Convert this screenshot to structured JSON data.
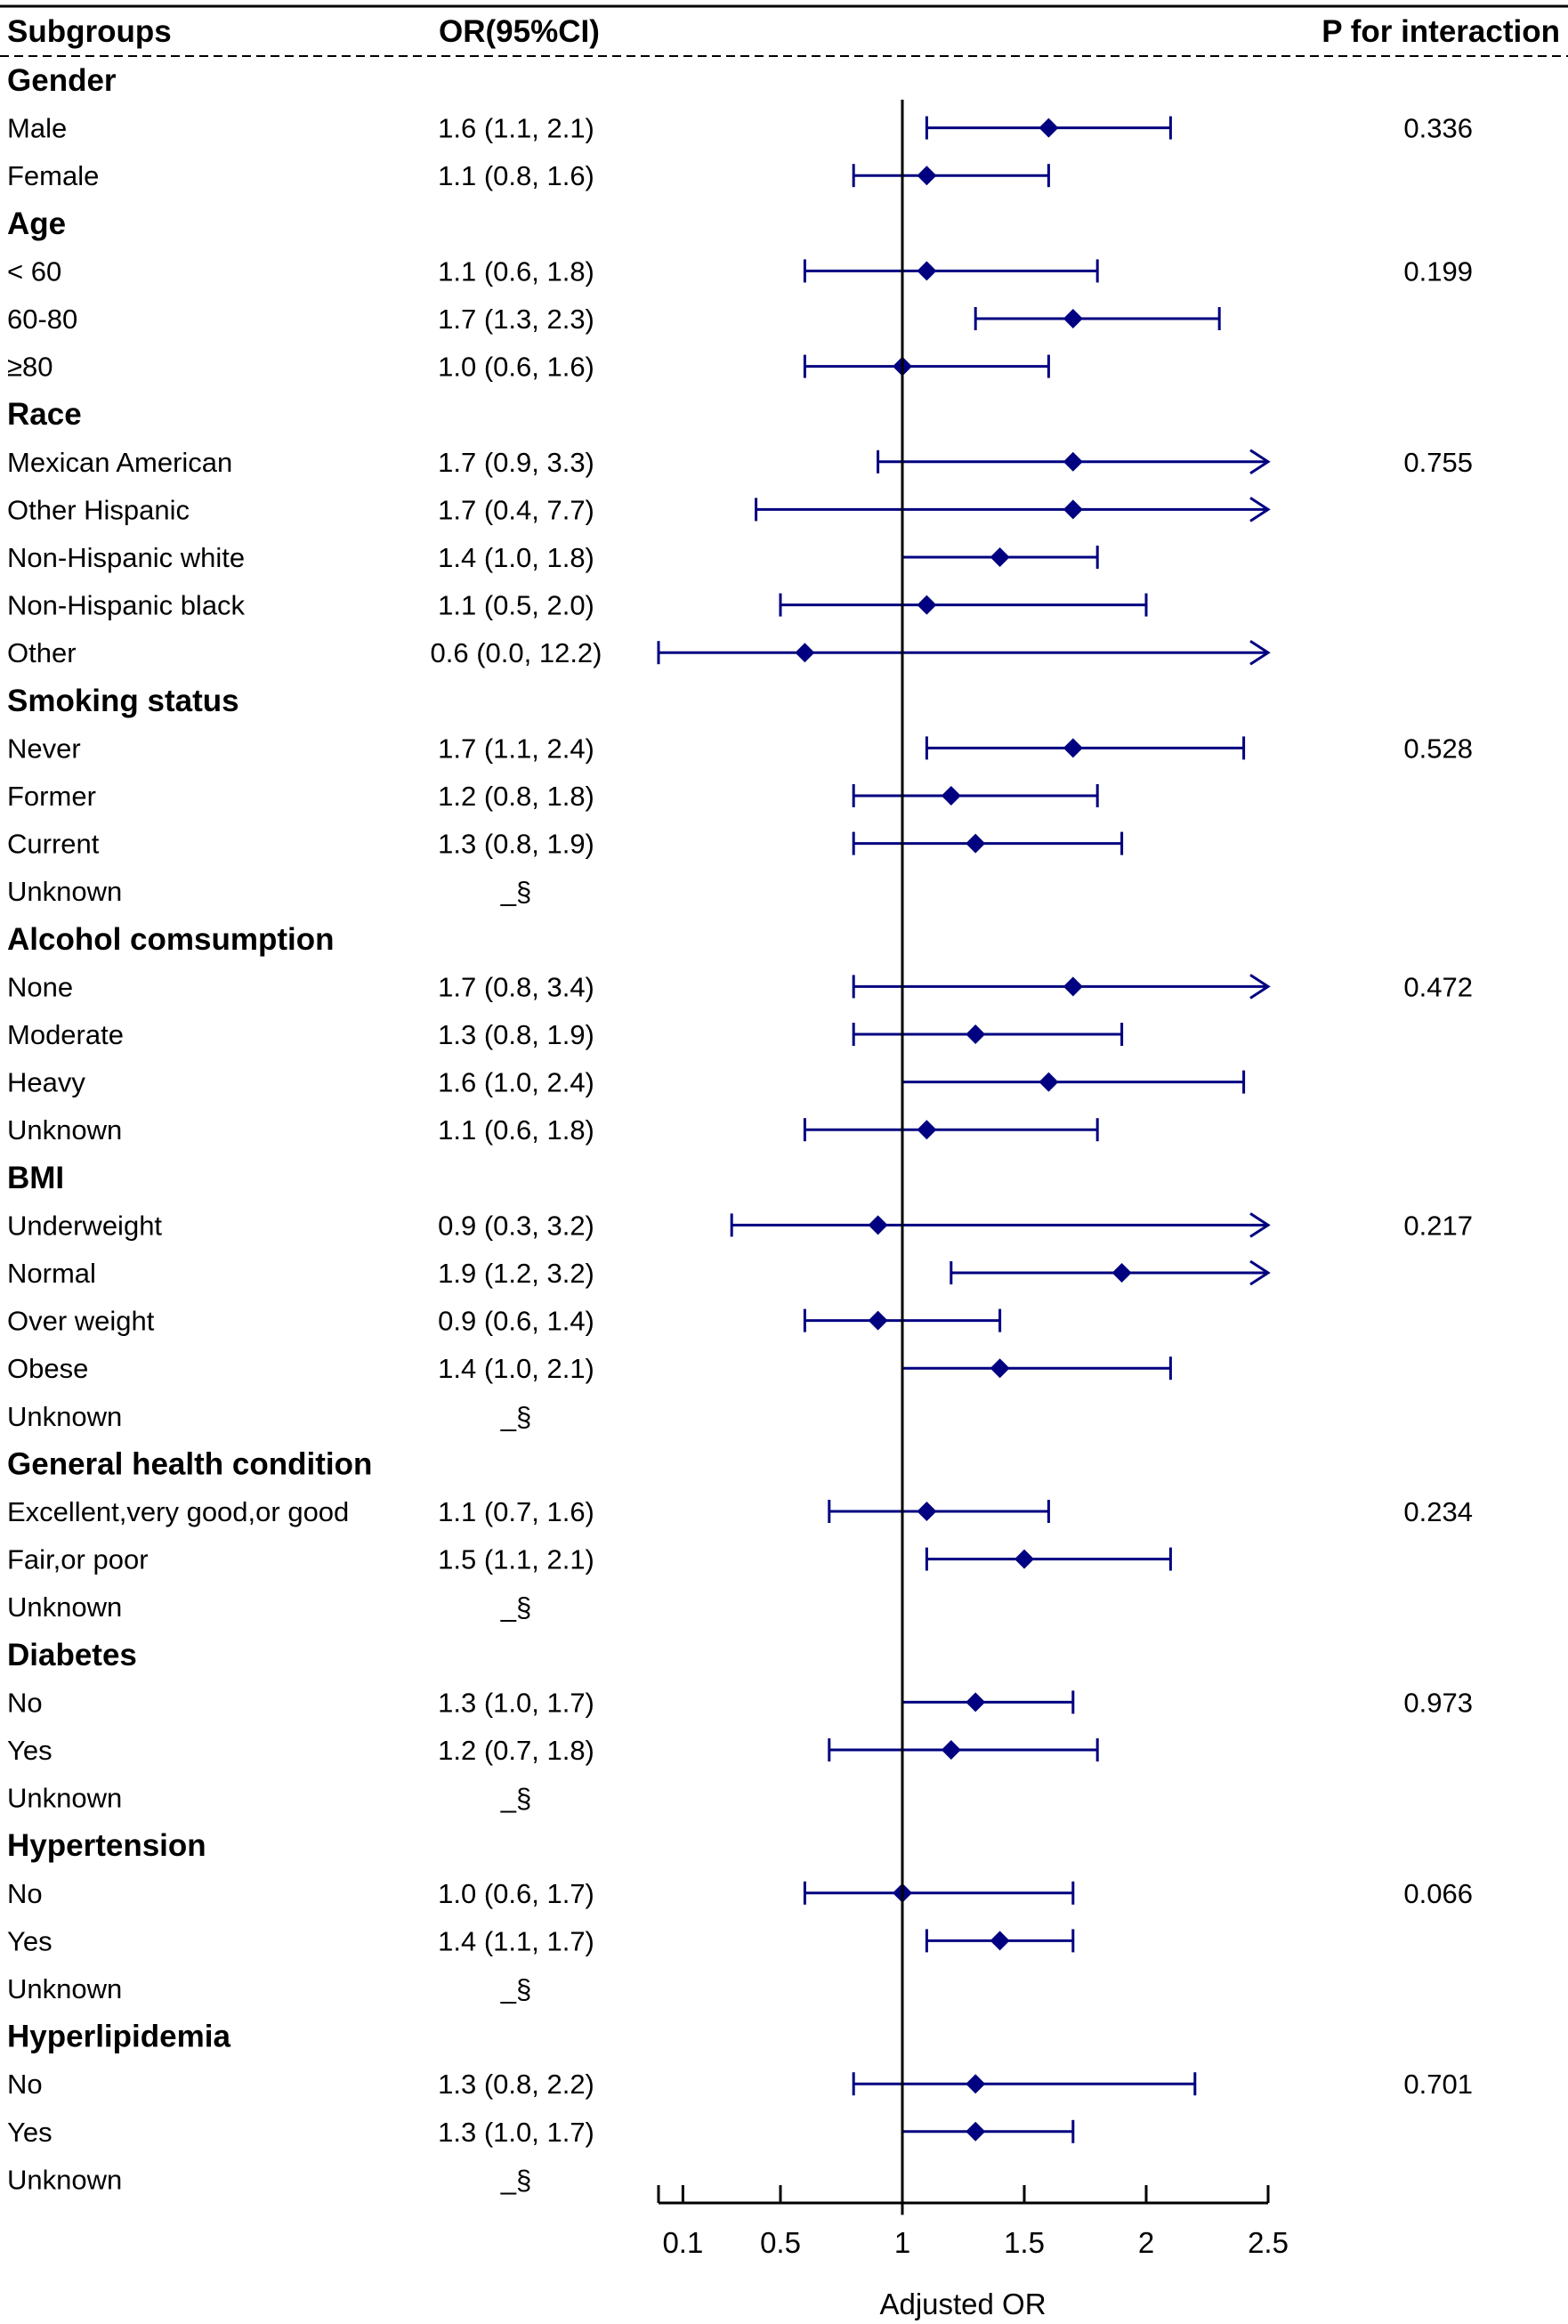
{
  "chart_data": {
    "type": "forest",
    "headers": {
      "subgroup": "Subgroups",
      "or": "OR(95%CI)",
      "p": "P for interaction"
    },
    "xlabel": "Adjusted OR",
    "xlim": [
      0,
      2.5
    ],
    "reference_line": 1,
    "ticks": [
      0,
      0.1,
      0.5,
      1,
      1.5,
      2,
      2.5
    ],
    "tick_labels": [
      "0.1",
      "0.5",
      "1",
      "1.5",
      "2",
      "2.5"
    ],
    "marker_color": "#000080",
    "rows": [
      {
        "type": "group",
        "label": "Gender"
      },
      {
        "type": "item",
        "label": "Male",
        "or_text": "1.6 (1.1, 2.1)",
        "or": 1.6,
        "lo": 1.1,
        "hi": 2.1,
        "p": "0.336"
      },
      {
        "type": "item",
        "label": "Female",
        "or_text": "1.1 (0.8, 1.6)",
        "or": 1.1,
        "lo": 0.8,
        "hi": 1.6,
        "p": ""
      },
      {
        "type": "group",
        "label": "Age"
      },
      {
        "type": "item",
        "label": " < 60",
        "or_text": "1.1 (0.6, 1.8)",
        "or": 1.1,
        "lo": 0.6,
        "hi": 1.8,
        "p": "0.199"
      },
      {
        "type": "item",
        "label": "60-80",
        "or_text": "1.7 (1.3, 2.3)",
        "or": 1.7,
        "lo": 1.3,
        "hi": 2.3,
        "p": ""
      },
      {
        "type": "item",
        "label": "≥80",
        "or_text": "1.0 (0.6, 1.6)",
        "or": 1.0,
        "lo": 0.6,
        "hi": 1.6,
        "p": ""
      },
      {
        "type": "group",
        "label": "Race"
      },
      {
        "type": "item",
        "label": "Mexican American",
        "or_text": "1.7 (0.9, 3.3)",
        "or": 1.7,
        "lo": 0.9,
        "hi": 3.3,
        "p": "0.755"
      },
      {
        "type": "item",
        "label": "Other Hispanic",
        "or_text": "1.7 (0.4, 7.7)",
        "or": 1.7,
        "lo": 0.4,
        "hi": 7.7,
        "p": ""
      },
      {
        "type": "item",
        "label": "Non-Hispanic white",
        "or_text": "1.4 (1.0, 1.8)",
        "or": 1.4,
        "lo": 1.0,
        "hi": 1.8,
        "p": ""
      },
      {
        "type": "item",
        "label": "Non-Hispanic black",
        "or_text": "1.1 (0.5, 2.0)",
        "or": 1.1,
        "lo": 0.5,
        "hi": 2.0,
        "p": ""
      },
      {
        "type": "item",
        "label": "Other",
        "or_text": "0.6 (0.0, 12.2)",
        "or": 0.6,
        "lo": 0.0,
        "hi": 12.2,
        "p": ""
      },
      {
        "type": "group",
        "label": "Smoking status"
      },
      {
        "type": "item",
        "label": "Never",
        "or_text": "1.7 (1.1, 2.4)",
        "or": 1.7,
        "lo": 1.1,
        "hi": 2.4,
        "p": "0.528"
      },
      {
        "type": "item",
        "label": "Former",
        "or_text": "1.2 (0.8, 1.8)",
        "or": 1.2,
        "lo": 0.8,
        "hi": 1.8,
        "p": ""
      },
      {
        "type": "item",
        "label": "Current",
        "or_text": "1.3 (0.8, 1.9)",
        "or": 1.3,
        "lo": 0.8,
        "hi": 1.9,
        "p": ""
      },
      {
        "type": "item",
        "label": "Unknown",
        "or_text": "_§",
        "or": null,
        "lo": null,
        "hi": null,
        "p": ""
      },
      {
        "type": "group",
        "label": "Alcohol comsumption"
      },
      {
        "type": "item",
        "label": "None",
        "or_text": "1.7 (0.8, 3.4)",
        "or": 1.7,
        "lo": 0.8,
        "hi": 3.4,
        "p": "0.472"
      },
      {
        "type": "item",
        "label": "Moderate",
        "or_text": "1.3 (0.8, 1.9)",
        "or": 1.3,
        "lo": 0.8,
        "hi": 1.9,
        "p": ""
      },
      {
        "type": "item",
        "label": "Heavy",
        "or_text": "1.6 (1.0, 2.4)",
        "or": 1.6,
        "lo": 1.0,
        "hi": 2.4,
        "p": ""
      },
      {
        "type": "item",
        "label": "Unknown",
        "or_text": "1.1 (0.6, 1.8)",
        "or": 1.1,
        "lo": 0.6,
        "hi": 1.8,
        "p": ""
      },
      {
        "type": "group",
        "label": "BMI"
      },
      {
        "type": "item",
        "label": "Underweight",
        "or_text": "0.9 (0.3, 3.2)",
        "or": 0.9,
        "lo": 0.3,
        "hi": 3.2,
        "p": "0.217"
      },
      {
        "type": "item",
        "label": "Normal",
        "or_text": "1.9 (1.2, 3.2)",
        "or": 1.9,
        "lo": 1.2,
        "hi": 3.2,
        "p": ""
      },
      {
        "type": "item",
        "label": "Over weight",
        "or_text": "0.9 (0.6, 1.4)",
        "or": 0.9,
        "lo": 0.6,
        "hi": 1.4,
        "p": ""
      },
      {
        "type": "item",
        "label": "Obese",
        "or_text": "1.4 (1.0, 2.1)",
        "or": 1.4,
        "lo": 1.0,
        "hi": 2.1,
        "p": ""
      },
      {
        "type": "item",
        "label": "Unknown",
        "or_text": "_§",
        "or": null,
        "lo": null,
        "hi": null,
        "p": ""
      },
      {
        "type": "group",
        "label": "General health condition"
      },
      {
        "type": "item",
        "label": "Excellent,very good,or good",
        "or_text": "1.1 (0.7, 1.6)",
        "or": 1.1,
        "lo": 0.7,
        "hi": 1.6,
        "p": "0.234"
      },
      {
        "type": "item",
        "label": "Fair,or poor",
        "or_text": "1.5 (1.1, 2.1)",
        "or": 1.5,
        "lo": 1.1,
        "hi": 2.1,
        "p": ""
      },
      {
        "type": "item",
        "label": "Unknown",
        "or_text": "_§",
        "or": null,
        "lo": null,
        "hi": null,
        "p": ""
      },
      {
        "type": "group",
        "label": "Diabetes"
      },
      {
        "type": "item",
        "label": "No",
        "or_text": "1.3 (1.0, 1.7)",
        "or": 1.3,
        "lo": 1.0,
        "hi": 1.7,
        "p": "0.973"
      },
      {
        "type": "item",
        "label": "Yes",
        "or_text": "1.2 (0.7, 1.8)",
        "or": 1.2,
        "lo": 0.7,
        "hi": 1.8,
        "p": ""
      },
      {
        "type": "item",
        "label": "Unknown",
        "or_text": "_§",
        "or": null,
        "lo": null,
        "hi": null,
        "p": ""
      },
      {
        "type": "group",
        "label": "Hypertension"
      },
      {
        "type": "item",
        "label": "No",
        "or_text": "1.0 (0.6, 1.7)",
        "or": 1.0,
        "lo": 0.6,
        "hi": 1.7,
        "p": "0.066"
      },
      {
        "type": "item",
        "label": "Yes",
        "or_text": "1.4 (1.1, 1.7)",
        "or": 1.4,
        "lo": 1.1,
        "hi": 1.7,
        "p": ""
      },
      {
        "type": "item",
        "label": "Unknown",
        "or_text": "_§",
        "or": null,
        "lo": null,
        "hi": null,
        "p": ""
      },
      {
        "type": "group",
        "label": "Hyperlipidemia"
      },
      {
        "type": "item",
        "label": "No",
        "or_text": "1.3 (0.8, 2.2)",
        "or": 1.3,
        "lo": 0.8,
        "hi": 2.2,
        "p": "0.701"
      },
      {
        "type": "item",
        "label": "Yes",
        "or_text": "1.3 (1.0, 1.7)",
        "or": 1.3,
        "lo": 1.0,
        "hi": 1.7,
        "p": ""
      },
      {
        "type": "item",
        "label": "Unknown",
        "or_text": "_§",
        "or": null,
        "lo": null,
        "hi": null,
        "p": ""
      }
    ]
  }
}
